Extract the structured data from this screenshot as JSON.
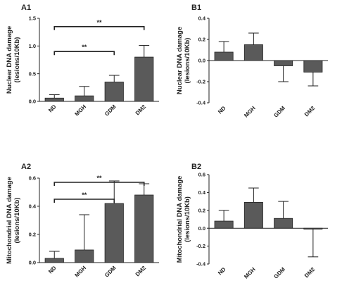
{
  "chart_data": [
    {
      "panel": "A1",
      "type": "bar",
      "ylabel_lines": [
        "Nuclear DNA damage",
        "(lesions/10Kb)"
      ],
      "ylim": [
        0,
        1.5
      ],
      "yticks": [
        "0.0",
        "0.5",
        "1.0",
        "1.5"
      ],
      "categories": [
        "ND",
        "MGH",
        "GDM",
        "DM2"
      ],
      "values": [
        0.06,
        0.1,
        0.35,
        0.8
      ],
      "errors": [
        0.06,
        0.17,
        0.12,
        0.21
      ],
      "significance": [
        {
          "from": "ND",
          "to": "DM2",
          "label": "**",
          "y": 1.35
        },
        {
          "from": "ND",
          "to": "GDM",
          "label": "**",
          "y": 0.9
        }
      ]
    },
    {
      "panel": "B1",
      "type": "bar",
      "ylabel_lines": [
        "Nuclear DNA damage",
        "(lesions/10Kb)"
      ],
      "ylim": [
        -0.4,
        0.4
      ],
      "yticks": [
        "0.4",
        "0.2",
        "0.0",
        "-0.2",
        "-0.4"
      ],
      "categories": [
        "ND",
        "MGH",
        "GDM",
        "DM2"
      ],
      "values": [
        0.08,
        0.15,
        -0.05,
        -0.11
      ],
      "errors": [
        0.1,
        0.11,
        0.15,
        0.13
      ],
      "significance": []
    },
    {
      "panel": "A2",
      "type": "bar",
      "ylabel_lines": [
        "Mitochondrial DNA damage",
        "(lesions/10Kb)"
      ],
      "ylim": [
        0,
        0.6
      ],
      "yticks": [
        "0.0",
        "0.2",
        "0.4",
        "0.6"
      ],
      "categories": [
        "ND",
        "MGH",
        "GDM",
        "DM2"
      ],
      "values": [
        0.03,
        0.09,
        0.42,
        0.48
      ],
      "errors": [
        0.05,
        0.25,
        0.16,
        0.08
      ],
      "significance": [
        {
          "from": "ND",
          "to": "DM2",
          "label": "**",
          "y": 0.57
        },
        {
          "from": "ND",
          "to": "GDM",
          "label": "**",
          "y": 0.45
        }
      ]
    },
    {
      "panel": "B2",
      "type": "bar",
      "ylabel_lines": [
        "Mitochondrial DNA damage",
        "(lesions/10Kb)"
      ],
      "ylim": [
        -0.4,
        0.6
      ],
      "yticks": [
        "0.6",
        "0.4",
        "0.2",
        "0.0",
        "-0.2",
        "-0.4"
      ],
      "categories": [
        "ND",
        "MGH",
        "GDM",
        "DM2"
      ],
      "values": [
        0.08,
        0.29,
        0.11,
        -0.01
      ],
      "errors": [
        0.12,
        0.16,
        0.19,
        0.31
      ],
      "significance": []
    }
  ],
  "colors": {
    "bar": "#5a5a5a",
    "stroke": "#222222"
  }
}
